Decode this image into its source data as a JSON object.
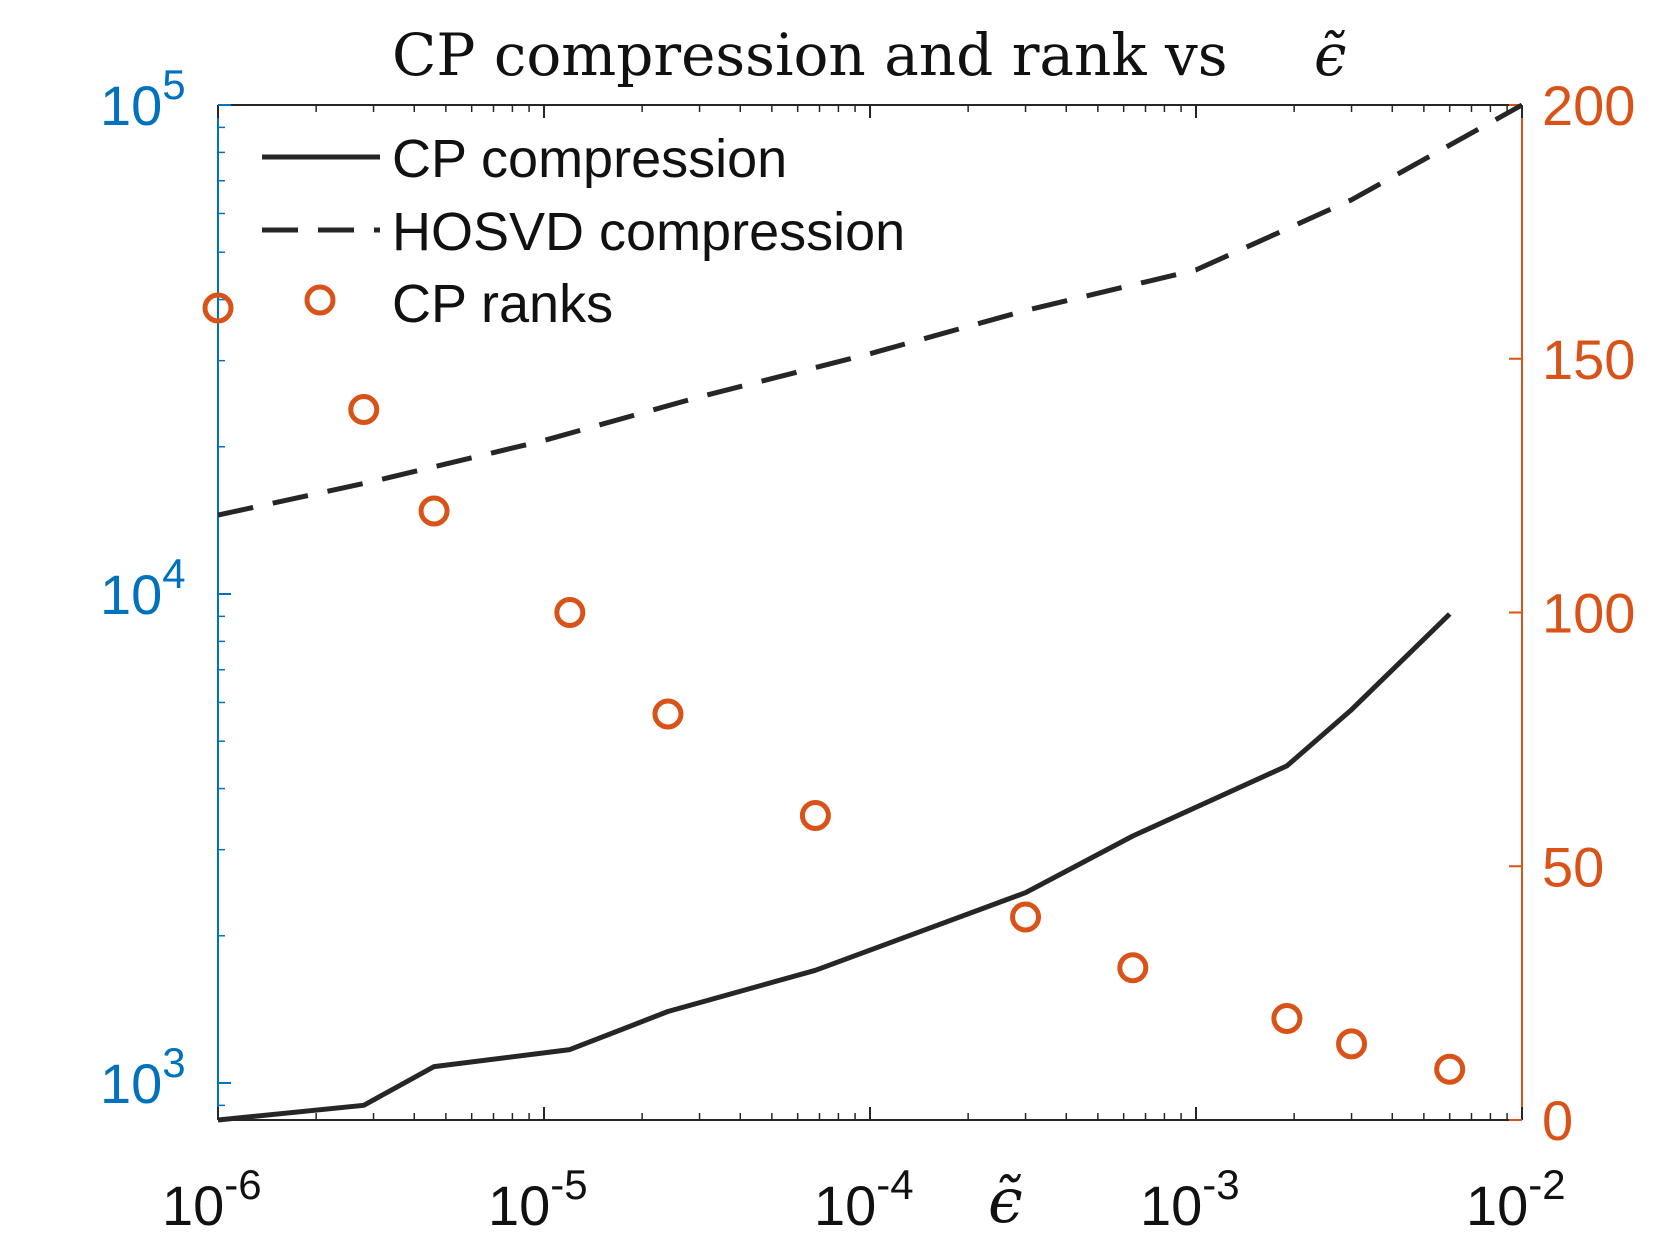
{
  "chart_data": {
    "type": "line",
    "title": "CP compression and rank vs",
    "title_symbol": "ϵ̃",
    "xlabel_symbol": "ϵ̃",
    "x_scale": "log",
    "xlim": [
      1e-06,
      0.01
    ],
    "x_ticks": [
      {
        "base": "10",
        "exp": "-6"
      },
      {
        "base": "10",
        "exp": "-5"
      },
      {
        "base": "10",
        "exp": "-4"
      },
      {
        "base": "10",
        "exp": "-3"
      },
      {
        "base": "10",
        "exp": "-2"
      }
    ],
    "y_left": {
      "scale": "log",
      "ylim": [
        840,
        100000
      ],
      "ticks": [
        {
          "base": "10",
          "exp": "3"
        },
        {
          "base": "10",
          "exp": "4"
        },
        {
          "base": "10",
          "exp": "5"
        }
      ],
      "color": "#0072BD"
    },
    "y_right": {
      "scale": "linear",
      "ylim": [
        0,
        200
      ],
      "ticks": [
        "0",
        "50",
        "100",
        "150",
        "200"
      ],
      "color": "#D95319"
    },
    "series": [
      {
        "name": "CP compression",
        "axis": "left",
        "style": "solid",
        "color": "#262626",
        "x": [
          1e-06,
          2.8e-06,
          4.6e-06,
          1.2e-05,
          2.4e-05,
          6.8e-05,
          0.0003,
          0.00064,
          0.0019,
          0.003,
          0.006
        ],
        "y": [
          840,
          900,
          1080,
          1170,
          1400,
          1700,
          2450,
          3200,
          4450,
          5800,
          9100
        ]
      },
      {
        "name": "HOSVD compression",
        "axis": "left",
        "style": "dashed",
        "color": "#262626",
        "x": [
          1e-06,
          3e-06,
          1e-05,
          3e-05,
          0.0001,
          0.0003,
          0.001,
          0.003,
          0.01
        ],
        "y": [
          14500,
          17000,
          20600,
          25300,
          31000,
          38000,
          46000,
          64000,
          100000
        ]
      },
      {
        "name": "CP ranks",
        "axis": "right",
        "style": "markers",
        "marker": "circle",
        "color": "#D95319",
        "x": [
          1e-06,
          2.8e-06,
          4.6e-06,
          1.2e-05,
          2.4e-05,
          6.8e-05,
          0.0003,
          0.00064,
          0.0019,
          0.003,
          0.006
        ],
        "y": [
          160,
          140,
          120,
          100,
          80,
          60,
          40,
          30,
          20,
          15,
          10
        ]
      }
    ],
    "legend": {
      "position": "top-left",
      "entries": [
        "CP compression",
        "HOSVD compression",
        "CP ranks"
      ]
    },
    "grid": false
  }
}
